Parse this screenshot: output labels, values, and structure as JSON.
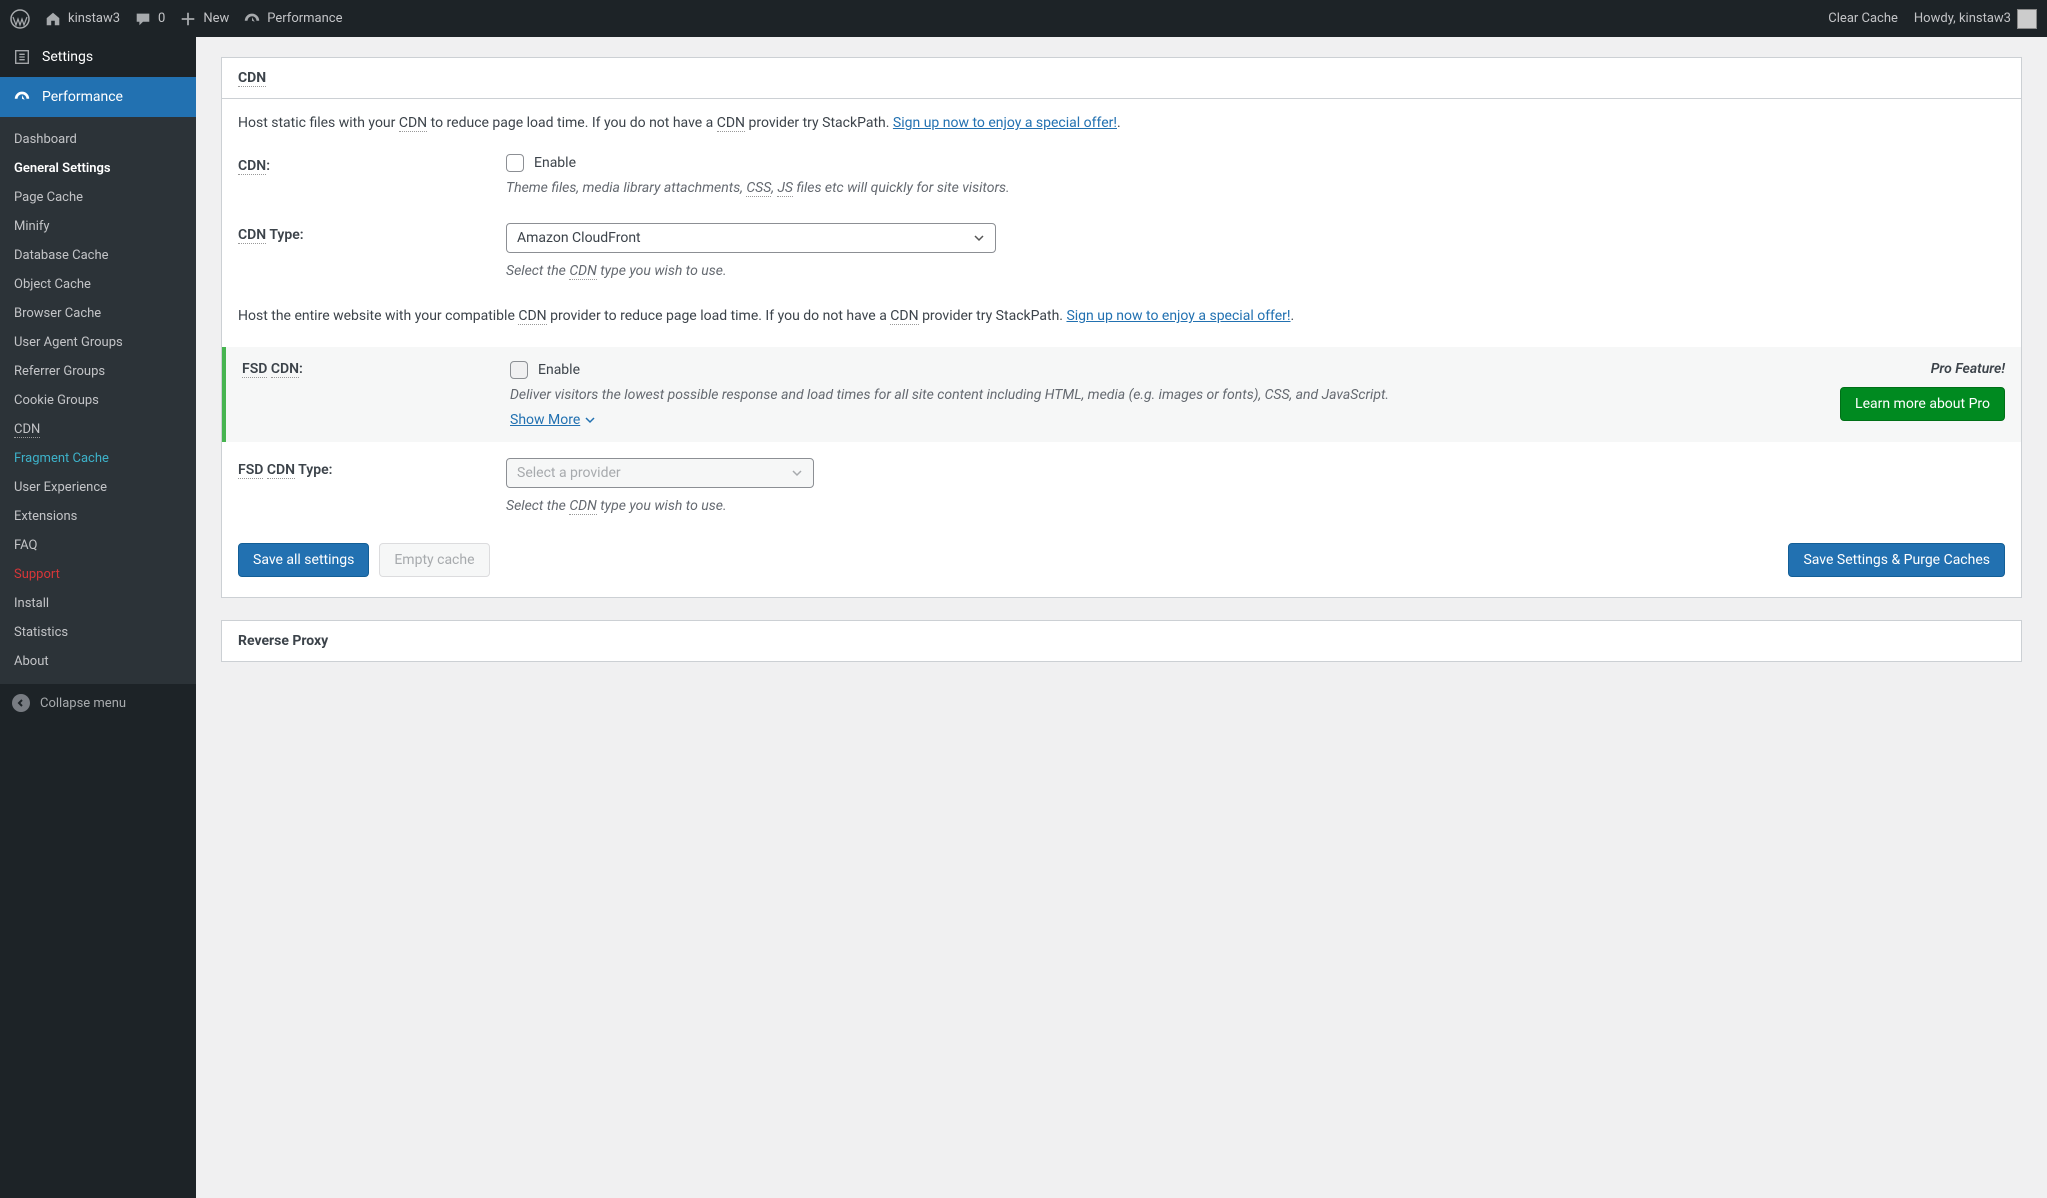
{
  "colors": {
    "adminbar_bg": "#1d2327",
    "sidebar_bg": "#1d2327",
    "submenu_bg": "#2c3338",
    "accent": "#2271b1",
    "green": "#008a20",
    "green_border": "#46b450",
    "link": "#2271b1",
    "text": "#3c434a",
    "muted": "#646970",
    "teal": "#3db1c8",
    "red": "#d63638"
  },
  "adminbar": {
    "site_name": "kinstaw3",
    "comments_count": "0",
    "new_label": "New",
    "performance_label": "Performance",
    "clear_cache": "Clear Cache",
    "howdy": "Howdy, kinstaw3"
  },
  "sidebar": {
    "settings_label": "Settings",
    "performance_label": "Performance",
    "items": [
      {
        "label": "Dashboard",
        "cls": ""
      },
      {
        "label": "General Settings",
        "cls": "current"
      },
      {
        "label": "Page Cache",
        "cls": ""
      },
      {
        "label": "Minify",
        "cls": ""
      },
      {
        "label": "Database Cache",
        "cls": ""
      },
      {
        "label": "Object Cache",
        "cls": ""
      },
      {
        "label": "Browser Cache",
        "cls": ""
      },
      {
        "label": "User Agent Groups",
        "cls": ""
      },
      {
        "label": "Referrer Groups",
        "cls": ""
      },
      {
        "label": "Cookie Groups",
        "cls": ""
      },
      {
        "label": "CDN",
        "cls": ""
      },
      {
        "label": "Fragment Cache",
        "cls": "teal"
      },
      {
        "label": "User Experience",
        "cls": ""
      },
      {
        "label": "Extensions",
        "cls": ""
      },
      {
        "label": "FAQ",
        "cls": ""
      },
      {
        "label": "Support",
        "cls": "red"
      },
      {
        "label": "Install",
        "cls": ""
      },
      {
        "label": "Statistics",
        "cls": ""
      },
      {
        "label": "About",
        "cls": ""
      }
    ],
    "collapse_label": "Collapse menu"
  },
  "panel": {
    "heading": "CDN",
    "intro_pre": "Host static files with your ",
    "intro_cdn": "CDN",
    "intro_mid": " to reduce page load time. If you do not have a ",
    "intro_post": " provider try StackPath. ",
    "signup_link": "Sign up now to enjoy a special offer!",
    "intro_end": ".",
    "cdn_label_a": "CDN",
    "cdn_label_b": ":",
    "enable_label": "Enable",
    "cdn_desc_a": "Theme files, media library attachments, ",
    "cdn_desc_css": "CSS",
    "cdn_desc_sep": ", ",
    "cdn_desc_js": "JS",
    "cdn_desc_b": " files etc will quickly for site visitors.",
    "cdn_type_label_a": "CDN",
    "cdn_type_label_b": " Type:",
    "cdn_type_value": "Amazon CloudFront",
    "cdn_type_desc_a": "Select the ",
    "cdn_type_desc_cdn": "CDN",
    "cdn_type_desc_b": " type you wish to use.",
    "intro2_a": "Host the entire website with your compatible ",
    "intro2_b": " provider to reduce page load time. If you do not have a ",
    "intro2_c": " provider try StackPath. ",
    "fsd_label_a": "FSD",
    "fsd_label_b": " ",
    "fsd_label_c": "CDN",
    "fsd_label_d": ":",
    "fsd_desc": "Deliver visitors the lowest possible response and load times for all site content including HTML, media (e.g. images or fonts), CSS, and JavaScript.",
    "show_more": "Show More",
    "pro_badge": "Pro Feature!",
    "learn_more": "Learn more about Pro",
    "fsd_type_label_a": "FSD",
    "fsd_type_label_b": " ",
    "fsd_type_label_c": "CDN",
    "fsd_type_label_d": " Type:",
    "fsd_type_placeholder": "Select a provider",
    "save_all": "Save all settings",
    "empty_cache": "Empty cache",
    "save_purge": "Save Settings & Purge Caches",
    "next_heading": "Reverse Proxy"
  }
}
